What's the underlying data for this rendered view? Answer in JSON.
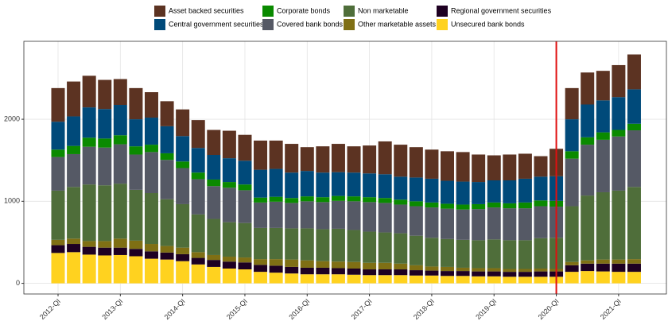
{
  "chart_data": {
    "type": "stacked_bar",
    "categories": [
      "2012-QI",
      null,
      null,
      null,
      "2013-QI",
      null,
      null,
      null,
      "2014-QI",
      null,
      null,
      null,
      "2015-QI",
      null,
      null,
      null,
      "2016-QI",
      null,
      null,
      null,
      "2017-QI",
      null,
      null,
      null,
      "2018-QI",
      null,
      null,
      null,
      "2019-QI",
      null,
      null,
      null,
      "2020-QI",
      null,
      null,
      null,
      "2021-QI",
      null
    ],
    "series": [
      {
        "name": "Unsecured bank bonds",
        "color": "#ffd21f",
        "values": [
          370,
          380,
          350,
          340,
          345,
          330,
          300,
          290,
          270,
          230,
          200,
          180,
          170,
          140,
          130,
          120,
          110,
          110,
          110,
          105,
          100,
          100,
          100,
          95,
          95,
          90,
          90,
          85,
          85,
          80,
          80,
          80,
          80,
          140,
          150,
          145,
          140,
          140
        ]
      },
      {
        "name": "Regional government securities",
        "color": "#1e0022",
        "values": [
          95,
          100,
          95,
          95,
          90,
          90,
          90,
          85,
          85,
          80,
          85,
          85,
          85,
          85,
          85,
          80,
          80,
          80,
          75,
          75,
          70,
          70,
          70,
          65,
          60,
          60,
          60,
          60,
          60,
          60,
          60,
          65,
          65,
          80,
          90,
          95,
          100,
          100
        ]
      },
      {
        "name": "Other marketable assets",
        "color": "#7f6f14",
        "values": [
          65,
          65,
          70,
          80,
          110,
          100,
          90,
          80,
          80,
          70,
          60,
          60,
          60,
          70,
          80,
          90,
          90,
          80,
          80,
          80,
          80,
          80,
          70,
          60,
          50,
          50,
          40,
          40,
          40,
          35,
          35,
          35,
          30,
          40,
          40,
          50,
          50,
          55
        ]
      },
      {
        "name": "Non marketable",
        "color": "#4f6e3a",
        "values": [
          600,
          630,
          690,
          680,
          670,
          620,
          620,
          570,
          530,
          460,
          440,
          420,
          420,
          380,
          380,
          380,
          390,
          390,
          400,
          390,
          380,
          370,
          370,
          360,
          350,
          340,
          340,
          340,
          350,
          350,
          350,
          370,
          380,
          680,
          790,
          820,
          840,
          880
        ]
      },
      {
        "name": "Covered bank bonds",
        "color": "#555965",
        "values": [
          410,
          400,
          460,
          460,
          480,
          430,
          500,
          480,
          440,
          430,
          400,
          420,
          400,
          310,
          320,
          310,
          330,
          330,
          340,
          350,
          360,
          360,
          350,
          360,
          370,
          370,
          370,
          380,
          390,
          390,
          390,
          390,
          380,
          580,
          620,
          640,
          660,
          690
        ]
      },
      {
        "name": "Corporate bonds",
        "color": "#0a8a00",
        "values": [
          90,
          100,
          110,
          110,
          110,
          100,
          90,
          80,
          80,
          80,
          80,
          70,
          70,
          60,
          60,
          60,
          60,
          60,
          60,
          60,
          60,
          60,
          60,
          60,
          60,
          60,
          60,
          60,
          60,
          60,
          70,
          70,
          70,
          90,
          90,
          90,
          80,
          80
        ]
      },
      {
        "name": "Central government securities",
        "color": "#004a7a",
        "values": [
          340,
          360,
          370,
          360,
          370,
          330,
          330,
          330,
          310,
          300,
          300,
          290,
          290,
          340,
          340,
          310,
          310,
          300,
          290,
          290,
          290,
          290,
          280,
          290,
          290,
          280,
          280,
          270,
          270,
          280,
          290,
          290,
          300,
          390,
          400,
          390,
          400,
          420
        ]
      },
      {
        "name": "Asset backed securities",
        "color": "#5c3322",
        "values": [
          410,
          425,
          385,
          355,
          315,
          380,
          310,
          305,
          325,
          340,
          305,
          335,
          315,
          355,
          345,
          350,
          290,
          320,
          345,
          320,
          340,
          400,
          390,
          370,
          355,
          360,
          360,
          335,
          305,
          315,
          305,
          250,
          335,
          380,
          390,
          360,
          390,
          425
        ]
      }
    ],
    "ylim": [
      -130,
      2950
    ],
    "yticks": [
      0,
      1000,
      2000
    ],
    "grid": true,
    "vline": "2020-QI",
    "vline_color": "#e01010"
  }
}
